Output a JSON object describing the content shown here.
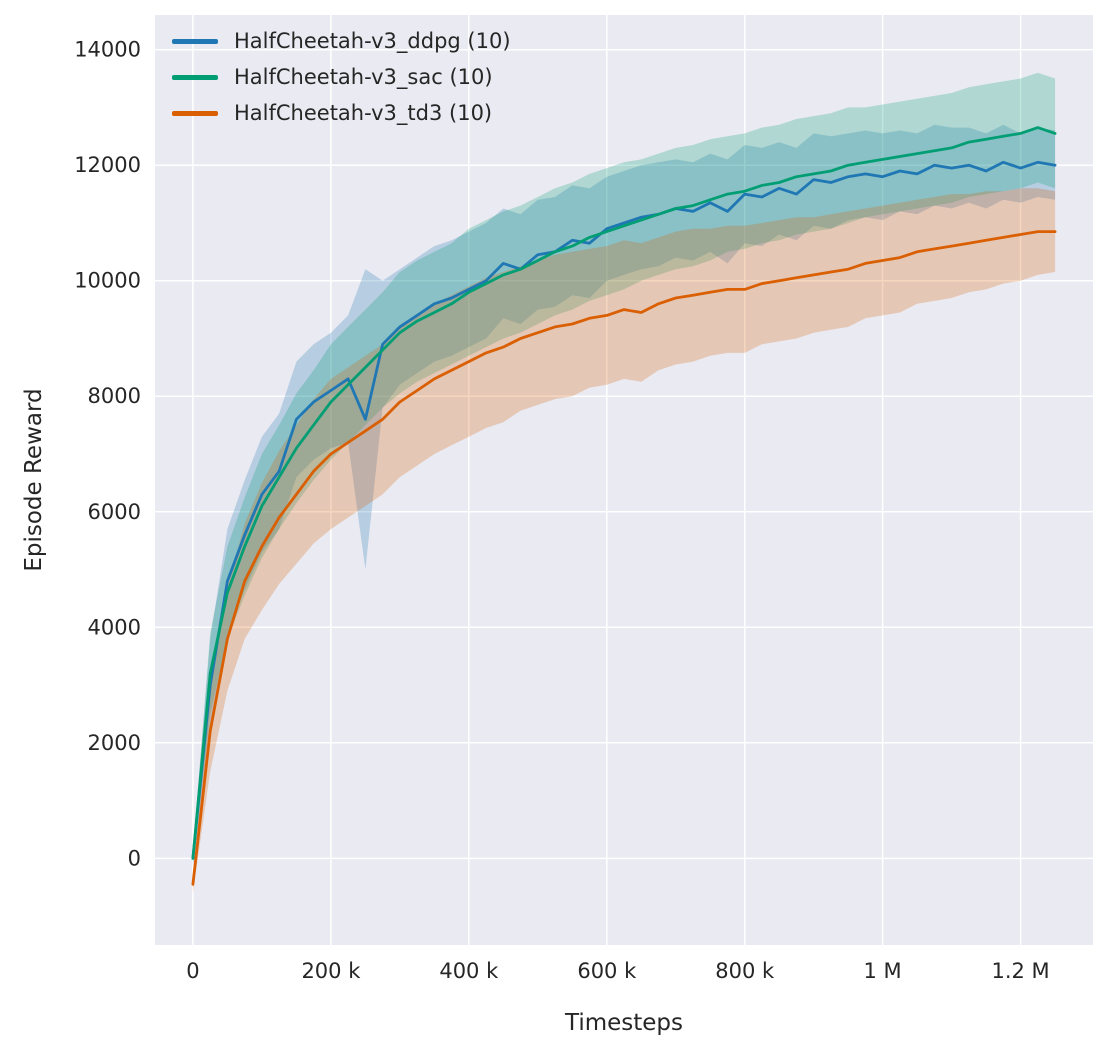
{
  "figure": {
    "background": "#ffffff",
    "axes_background": "#eaeaf2",
    "grid_color": "#ffffff",
    "text_color": "#262626"
  },
  "chart_data": {
    "type": "line",
    "title": "",
    "xlabel": "Timesteps",
    "ylabel": "Episode Reward",
    "grid": true,
    "legend_position": "upper left",
    "band_opacity": 0.25,
    "xlim": [
      -55000,
      1305000
    ],
    "ylim": [
      -1500,
      14600
    ],
    "xticks": [
      {
        "v": 0,
        "label": "0"
      },
      {
        "v": 200000,
        "label": "200 k"
      },
      {
        "v": 400000,
        "label": "400 k"
      },
      {
        "v": 600000,
        "label": "600 k"
      },
      {
        "v": 800000,
        "label": "800 k"
      },
      {
        "v": 1000000,
        "label": "1 M"
      },
      {
        "v": 1200000,
        "label": "1.2 M"
      }
    ],
    "yticks": [
      {
        "v": 0,
        "label": "0"
      },
      {
        "v": 2000,
        "label": "2000"
      },
      {
        "v": 4000,
        "label": "4000"
      },
      {
        "v": 6000,
        "label": "6000"
      },
      {
        "v": 8000,
        "label": "8000"
      },
      {
        "v": 10000,
        "label": "10000"
      },
      {
        "v": 12000,
        "label": "12000"
      },
      {
        "v": 14000,
        "label": "14000"
      }
    ],
    "x": [
      0,
      25000,
      50000,
      75000,
      100000,
      125000,
      150000,
      175000,
      200000,
      225000,
      250000,
      275000,
      300000,
      325000,
      350000,
      375000,
      400000,
      425000,
      450000,
      475000,
      500000,
      525000,
      550000,
      575000,
      600000,
      625000,
      650000,
      675000,
      700000,
      725000,
      750000,
      775000,
      800000,
      825000,
      850000,
      875000,
      900000,
      925000,
      950000,
      975000,
      1000000,
      1025000,
      1050000,
      1075000,
      1100000,
      1125000,
      1150000,
      1175000,
      1200000,
      1225000,
      1250000
    ],
    "series": [
      {
        "name": "HalfCheetah-v3_ddpg (10)",
        "color": "#1f77b4",
        "mean": [
          0,
          3000,
          4800,
          5600,
          6300,
          6700,
          7600,
          7900,
          8100,
          8300,
          7600,
          8900,
          9200,
          9400,
          9600,
          9700,
          9850,
          10000,
          10300,
          10200,
          10450,
          10500,
          10700,
          10650,
          10900,
          11000,
          11100,
          11150,
          11250,
          11200,
          11350,
          11200,
          11500,
          11450,
          11600,
          11500,
          11750,
          11700,
          11800,
          11850,
          11800,
          11900,
          11850,
          12000,
          11950,
          12000,
          11900,
          12050,
          11950,
          12050,
          12000
        ],
        "band": [
          150,
          800,
          900,
          950,
          1000,
          1000,
          1000,
          1000,
          1000,
          1100,
          2600,
          1100,
          1000,
          1000,
          1000,
          1000,
          1000,
          1000,
          950,
          950,
          950,
          950,
          950,
          950,
          900,
          900,
          900,
          900,
          850,
          850,
          850,
          900,
          850,
          850,
          800,
          800,
          800,
          800,
          750,
          750,
          750,
          700,
          700,
          700,
          700,
          650,
          650,
          650,
          600,
          600,
          600
        ]
      },
      {
        "name": "HalfCheetah-v3_sac (10)",
        "color": "#029e73",
        "mean": [
          0,
          3200,
          4600,
          5400,
          6100,
          6600,
          7100,
          7500,
          7900,
          8200,
          8500,
          8800,
          9100,
          9300,
          9450,
          9600,
          9800,
          9950,
          10100,
          10200,
          10350,
          10500,
          10600,
          10750,
          10850,
          10950,
          11050,
          11150,
          11250,
          11300,
          11400,
          11500,
          11550,
          11650,
          11700,
          11800,
          11850,
          11900,
          12000,
          12050,
          12100,
          12150,
          12200,
          12250,
          12300,
          12400,
          12450,
          12500,
          12550,
          12650,
          12550
        ],
        "band": [
          100,
          700,
          800,
          850,
          900,
          900,
          950,
          950,
          1000,
          1000,
          1000,
          1000,
          1050,
          1050,
          1050,
          1050,
          1100,
          1100,
          1100,
          1100,
          1100,
          1100,
          1100,
          1100,
          1100,
          1100,
          1050,
          1050,
          1050,
          1050,
          1050,
          1000,
          1000,
          1000,
          1000,
          1000,
          1000,
          1000,
          1000,
          950,
          950,
          950,
          950,
          950,
          950,
          950,
          950,
          950,
          950,
          950,
          950
        ]
      },
      {
        "name": "HalfCheetah-v3_td3 (10)",
        "color": "#d95f02",
        "mean": [
          -450,
          2200,
          3800,
          4800,
          5400,
          5900,
          6300,
          6700,
          7000,
          7200,
          7400,
          7600,
          7900,
          8100,
          8300,
          8450,
          8600,
          8750,
          8850,
          9000,
          9100,
          9200,
          9250,
          9350,
          9400,
          9500,
          9450,
          9600,
          9700,
          9750,
          9800,
          9850,
          9850,
          9950,
          10000,
          10050,
          10100,
          10150,
          10200,
          10300,
          10350,
          10400,
          10500,
          10550,
          10600,
          10650,
          10700,
          10750,
          10800,
          10850,
          10850
        ],
        "band": [
          150,
          700,
          900,
          1000,
          1100,
          1150,
          1200,
          1250,
          1300,
          1300,
          1300,
          1300,
          1300,
          1300,
          1300,
          1300,
          1300,
          1300,
          1300,
          1250,
          1250,
          1250,
          1250,
          1200,
          1200,
          1200,
          1200,
          1150,
          1150,
          1150,
          1100,
          1100,
          1100,
          1050,
          1050,
          1050,
          1000,
          1000,
          1000,
          950,
          950,
          950,
          900,
          900,
          900,
          850,
          850,
          800,
          800,
          750,
          700
        ]
      }
    ]
  }
}
